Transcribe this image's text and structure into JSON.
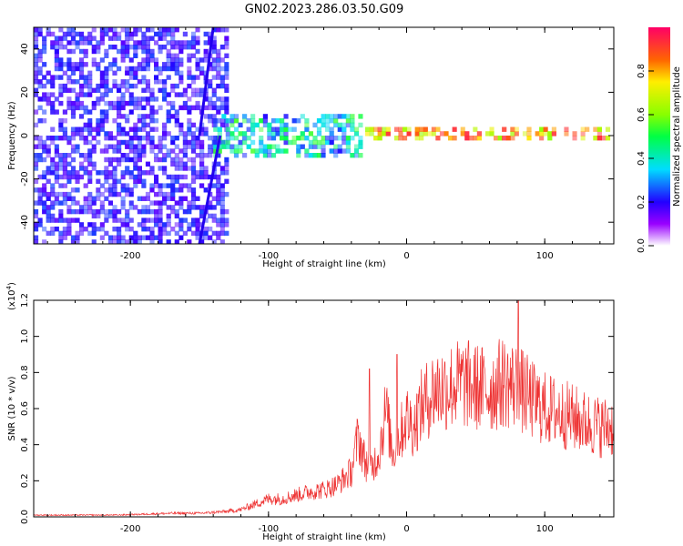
{
  "title": "GN02.2023.286.03.50.G09",
  "chart_data": [
    {
      "type": "heatmap",
      "xlabel": "Height of straight line (km)",
      "ylabel": "Frequency (Hz)",
      "xlim": [
        -270,
        150
      ],
      "ylim": [
        -50,
        50
      ],
      "x_ticks": [
        -200,
        -100,
        0,
        100
      ],
      "y_ticks": [
        -40,
        -20,
        0,
        20,
        40
      ],
      "regions": [
        {
          "x_range": [
            -270,
            -130
          ],
          "y_range": [
            -50,
            50
          ],
          "amplitude": [
            0.15,
            0.25
          ],
          "pattern": "broadband noise"
        },
        {
          "x_range": [
            -140,
            -30
          ],
          "y_range": [
            -10,
            10
          ],
          "amplitude": [
            0.2,
            0.55
          ],
          "pattern": "scattered band"
        },
        {
          "x_range": [
            -30,
            150
          ],
          "y_range": [
            -2,
            4
          ],
          "amplitude": [
            0.6,
            0.95
          ],
          "pattern": "narrow band near 0 Hz"
        }
      ],
      "streaks": [
        {
          "x_start": -150,
          "y_start": -50,
          "x_end": -135,
          "y_end": 0
        },
        {
          "x_start": -150,
          "y_start": 0,
          "x_end": -140,
          "y_end": 50
        }
      ],
      "colorbar": {
        "label": "Normalized spectral amplitude",
        "range": [
          0,
          1
        ],
        "ticks": [
          "0.0",
          "0.2",
          "0.4",
          "0.6",
          "0.8"
        ],
        "colormap": "rainbow"
      }
    },
    {
      "type": "line",
      "xlabel": "Height of straight line (km)",
      "ylabel": "SNR (10 * v/v)",
      "y_multiplier": "(x10",
      "y_multiplier_exp": "4",
      "y_multiplier_close": ")",
      "xlim": [
        -270,
        150
      ],
      "ylim": [
        0,
        1.2
      ],
      "x_ticks": [
        -200,
        -100,
        0,
        100
      ],
      "y_ticks": [
        "0.0",
        "0.2",
        "0.4",
        "0.6",
        "0.8",
        "1.0",
        "1.2"
      ],
      "line_color": "#ee3333",
      "series": [
        {
          "x": [
            -270,
            -250,
            -230,
            -210,
            -190,
            -170,
            -150,
            -130,
            -120,
            -110,
            -100,
            -90,
            -80,
            -70,
            -60,
            -50,
            -40,
            -35,
            -30,
            -25,
            -20,
            -15,
            -10,
            -5,
            0,
            5,
            10,
            15,
            20,
            30,
            40,
            50,
            60,
            70,
            80,
            90,
            100,
            110,
            120,
            130,
            140,
            150
          ],
          "y": [
            0.01,
            0.01,
            0.01,
            0.01,
            0.015,
            0.02,
            0.02,
            0.03,
            0.04,
            0.07,
            0.1,
            0.1,
            0.12,
            0.14,
            0.15,
            0.18,
            0.25,
            0.45,
            0.3,
            0.28,
            0.35,
            0.6,
            0.35,
            0.45,
            0.55,
            0.5,
            0.6,
            0.65,
            0.7,
            0.72,
            0.74,
            0.72,
            0.7,
            0.75,
            0.72,
            0.65,
            0.6,
            0.58,
            0.55,
            0.52,
            0.5,
            0.5
          ]
        }
      ],
      "peaks": [
        {
          "x": -27,
          "y": 0.82
        },
        {
          "x": -7,
          "y": 0.9
        },
        {
          "x": 81,
          "y": 1.2
        }
      ]
    }
  ]
}
